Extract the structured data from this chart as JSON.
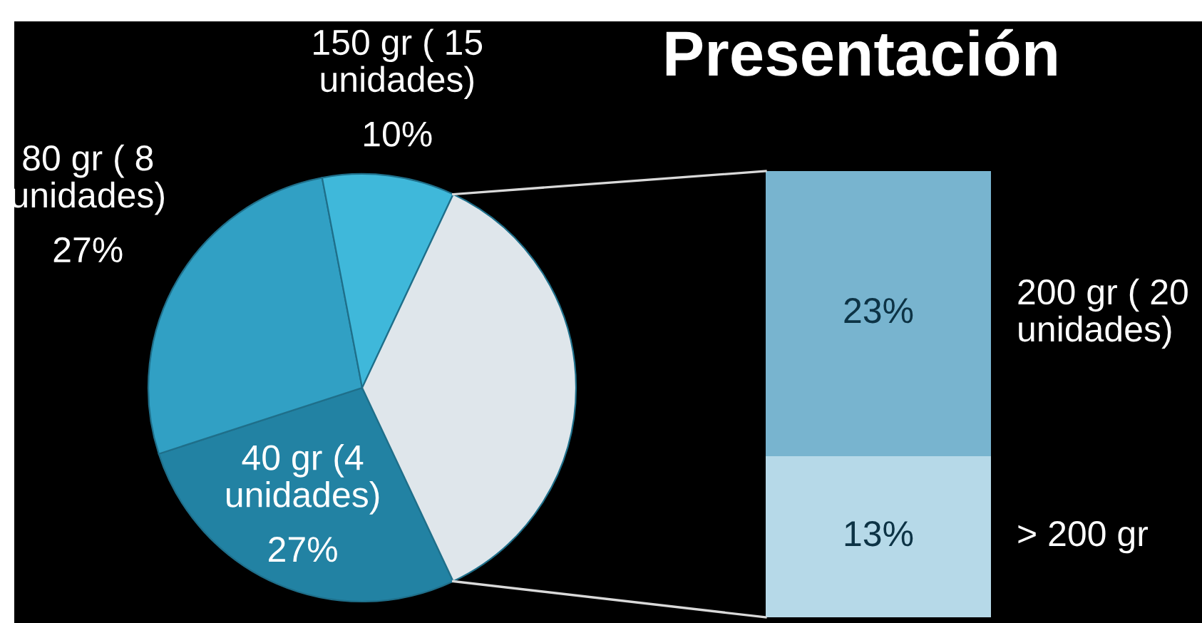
{
  "chart_data": [
    {
      "type": "pie",
      "categories": [
        "40 gr (4\nunidades)",
        "80 gr ( 8\nunidades)",
        "150 gr ( 15\nunidades)",
        null
      ],
      "values": [
        27,
        27,
        10,
        36
      ],
      "colors": [
        "#2282a3",
        "#31a0c4",
        "#3fb8da",
        "#dfe6eb"
      ],
      "value_labels": [
        "27%",
        "27%",
        "10%",
        null
      ]
    },
    {
      "type": "bar",
      "title": "Presentación",
      "stacked": true,
      "categories": [
        null
      ],
      "series": [
        {
          "name": "> 200 gr",
          "color": "#b6d9e8",
          "values": [
            13
          ],
          "value_labels": [
            "13%"
          ]
        },
        {
          "name": "200 gr ( 20\nunidades)",
          "color": "#78b4cf",
          "values": [
            23
          ],
          "value_labels": [
            "23%"
          ]
        }
      ]
    }
  ]
}
